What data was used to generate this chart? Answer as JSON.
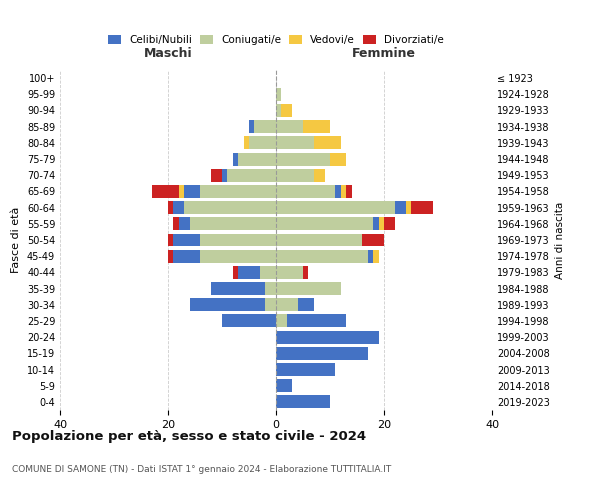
{
  "age_groups": [
    "0-4",
    "5-9",
    "10-14",
    "15-19",
    "20-24",
    "25-29",
    "30-34",
    "35-39",
    "40-44",
    "45-49",
    "50-54",
    "55-59",
    "60-64",
    "65-69",
    "70-74",
    "75-79",
    "80-84",
    "85-89",
    "90-94",
    "95-99",
    "100+"
  ],
  "birth_years": [
    "2019-2023",
    "2014-2018",
    "2009-2013",
    "2004-2008",
    "1999-2003",
    "1994-1998",
    "1989-1993",
    "1984-1988",
    "1979-1983",
    "1974-1978",
    "1969-1973",
    "1964-1968",
    "1959-1963",
    "1954-1958",
    "1949-1953",
    "1944-1948",
    "1939-1943",
    "1934-1938",
    "1929-1933",
    "1924-1928",
    "≤ 1923"
  ],
  "colors": {
    "celibe": "#4472C4",
    "coniugato": "#BFCE9E",
    "vedovo": "#F5C842",
    "divorziato": "#CC2222"
  },
  "males": {
    "celibe": [
      0,
      0,
      0,
      0,
      0,
      10,
      14,
      10,
      4,
      5,
      5,
      2,
      2,
      3,
      1,
      1,
      0,
      1,
      0,
      0,
      0
    ],
    "coniugato": [
      0,
      0,
      0,
      0,
      0,
      0,
      2,
      2,
      3,
      14,
      14,
      16,
      17,
      14,
      9,
      7,
      5,
      4,
      0,
      0,
      0
    ],
    "vedovo": [
      0,
      0,
      0,
      0,
      0,
      0,
      0,
      0,
      0,
      0,
      0,
      0,
      0,
      1,
      0,
      0,
      1,
      0,
      0,
      0,
      0
    ],
    "divorziato": [
      0,
      0,
      0,
      0,
      0,
      0,
      0,
      0,
      1,
      1,
      1,
      1,
      1,
      5,
      2,
      0,
      0,
      0,
      0,
      0,
      0
    ]
  },
  "females": {
    "nubile": [
      10,
      3,
      11,
      17,
      19,
      11,
      3,
      0,
      0,
      1,
      0,
      1,
      2,
      1,
      0,
      0,
      0,
      0,
      0,
      0,
      0
    ],
    "coniugata": [
      0,
      0,
      0,
      0,
      0,
      2,
      4,
      12,
      5,
      17,
      16,
      18,
      22,
      11,
      7,
      10,
      7,
      5,
      1,
      1,
      0
    ],
    "vedova": [
      0,
      0,
      0,
      0,
      0,
      0,
      0,
      0,
      0,
      1,
      0,
      1,
      1,
      1,
      2,
      3,
      5,
      5,
      2,
      0,
      0
    ],
    "divorziata": [
      0,
      0,
      0,
      0,
      0,
      0,
      0,
      0,
      1,
      0,
      4,
      2,
      4,
      1,
      0,
      0,
      0,
      0,
      0,
      0,
      0
    ]
  },
  "xlim": 40,
  "title": "Popolazione per età, sesso e stato civile - 2024",
  "subtitle": "COMUNE DI SAMONE (TN) - Dati ISTAT 1° gennaio 2024 - Elaborazione TUTTITALIA.IT",
  "ylabel_left": "Fasce di età",
  "ylabel_right": "Anni di nascita",
  "xlabel_left": "Maschi",
  "xlabel_right": "Femmine",
  "bg_color": "#ffffff",
  "grid_color": "#cccccc",
  "bar_height": 0.8
}
